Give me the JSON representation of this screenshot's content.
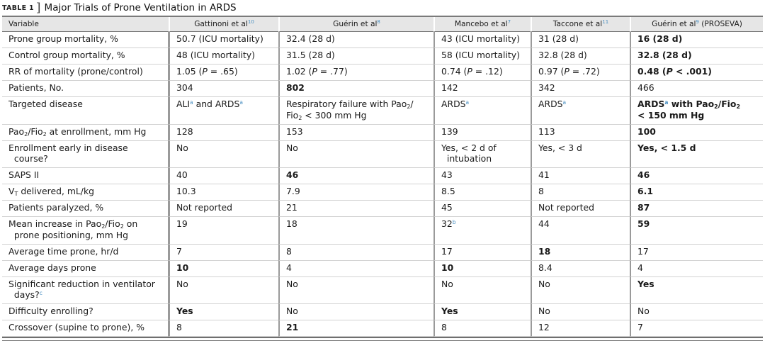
{
  "table_label": "TABLE 1",
  "bracket": "]",
  "title": "Major Trials of Prone Ventilation in ARDS",
  "columns": [
    "Variable",
    "Gattinoni et al",
    "Guérin et al",
    "Mancebo et al",
    "Taccone et al",
    "Guérin et al"
  ],
  "column_refs": [
    "",
    "10",
    "8",
    "7",
    "11",
    "9"
  ],
  "column_suffix": [
    "",
    "",
    "",
    "",
    "",
    " (PROSEVA)"
  ],
  "footnote_marks": {
    "a": "a",
    "b": "b",
    "c": "c"
  },
  "abbr": {
    "pao2": "Pao",
    "two": "2",
    "fio2": "Fio",
    "vt": "V",
    "vt_sub": "T",
    "p": "P",
    "ali": "ALI",
    "ards": "ARDS",
    "and": " and ARDS"
  },
  "rows": {
    "r1": {
      "label": "Prone group mortality, %",
      "v": [
        "50.7 (ICU mortality)",
        "32.4 (28 d)",
        "43 (ICU mortality)",
        "31 (28 d)",
        "16 (28 d)"
      ]
    },
    "r2": {
      "label": "Control group mortality, %",
      "v": [
        "48 (ICU mortality)",
        "31.5 (28 d)",
        "58 (ICU mortality)",
        "32.8 (28 d)",
        "32.8 (28 d)"
      ]
    },
    "r3": {
      "label": "RR of mortality (prone/control)",
      "v_pre": [
        "1.05 (",
        "1.02 (",
        "0.74 (",
        "0.97 (",
        "0.48 ("
      ],
      "v_post": [
        " = .65)",
        " = .77)",
        " = .12)",
        " = .72)",
        " < .001)"
      ]
    },
    "r4": {
      "label": "Patients, No.",
      "v": [
        "304",
        "802",
        "142",
        "342",
        "466"
      ]
    },
    "r5": {
      "label": "Targeted disease",
      "resp_a": "Respiratory failure with Pao",
      "resp_b": "/",
      "resp_c": "Fio",
      "resp_d": " < 300 mm Hg",
      "proseva_a": " with Pao",
      "proseva_b": "/Fio",
      "proseva_c": " < 150 mm Hg"
    },
    "r6": {
      "label_a": "Pao",
      "label_b": "/Fio",
      "label_c": " at enrollment, mm Hg",
      "v": [
        "128",
        "153",
        "139",
        "113",
        "100"
      ]
    },
    "r7": {
      "label_a": "Enrollment early in disease",
      "label_b": "course?",
      "v": [
        "No",
        "No",
        "Yes, < 2 d of",
        "Yes, < 3 d",
        "Yes, < 1.5 d"
      ],
      "v3b": "intubation"
    },
    "r8": {
      "label": "SAPS II",
      "v": [
        "40",
        "46",
        "43",
        "41",
        "46"
      ]
    },
    "r9": {
      "label_post": " delivered, mL/kg",
      "v": [
        "10.3",
        "7.9",
        "8.5",
        "8",
        "6.1"
      ]
    },
    "r10": {
      "label": "Patients paralyzed, %",
      "v": [
        "Not reported",
        "21",
        "45",
        "Not reported",
        "87"
      ]
    },
    "r11": {
      "label_a": "Mean increase in Pao",
      "label_b": "/Fio",
      "label_c": " on",
      "label_d": "prone positioning, mm Hg",
      "v": [
        "19",
        "18",
        "32",
        "44",
        "59"
      ]
    },
    "r12": {
      "label": "Average time prone, hr/d",
      "v": [
        "7",
        "8",
        "17",
        "18",
        "17"
      ]
    },
    "r13": {
      "label": "Average days prone",
      "v": [
        "10",
        "4",
        "10",
        "8.4",
        "4"
      ]
    },
    "r14": {
      "label_a": "Significant reduction in ventilator",
      "label_b": "days?",
      "v": [
        "No",
        "No",
        "No",
        "No",
        "Yes"
      ]
    },
    "r15": {
      "label": "Difficulty enrolling?",
      "v": [
        "Yes",
        "No",
        "Yes",
        "No",
        "No"
      ]
    },
    "r16": {
      "label": "Crossover (supine to prone), %",
      "v": [
        "8",
        "21",
        "8",
        "12",
        "7"
      ]
    }
  }
}
